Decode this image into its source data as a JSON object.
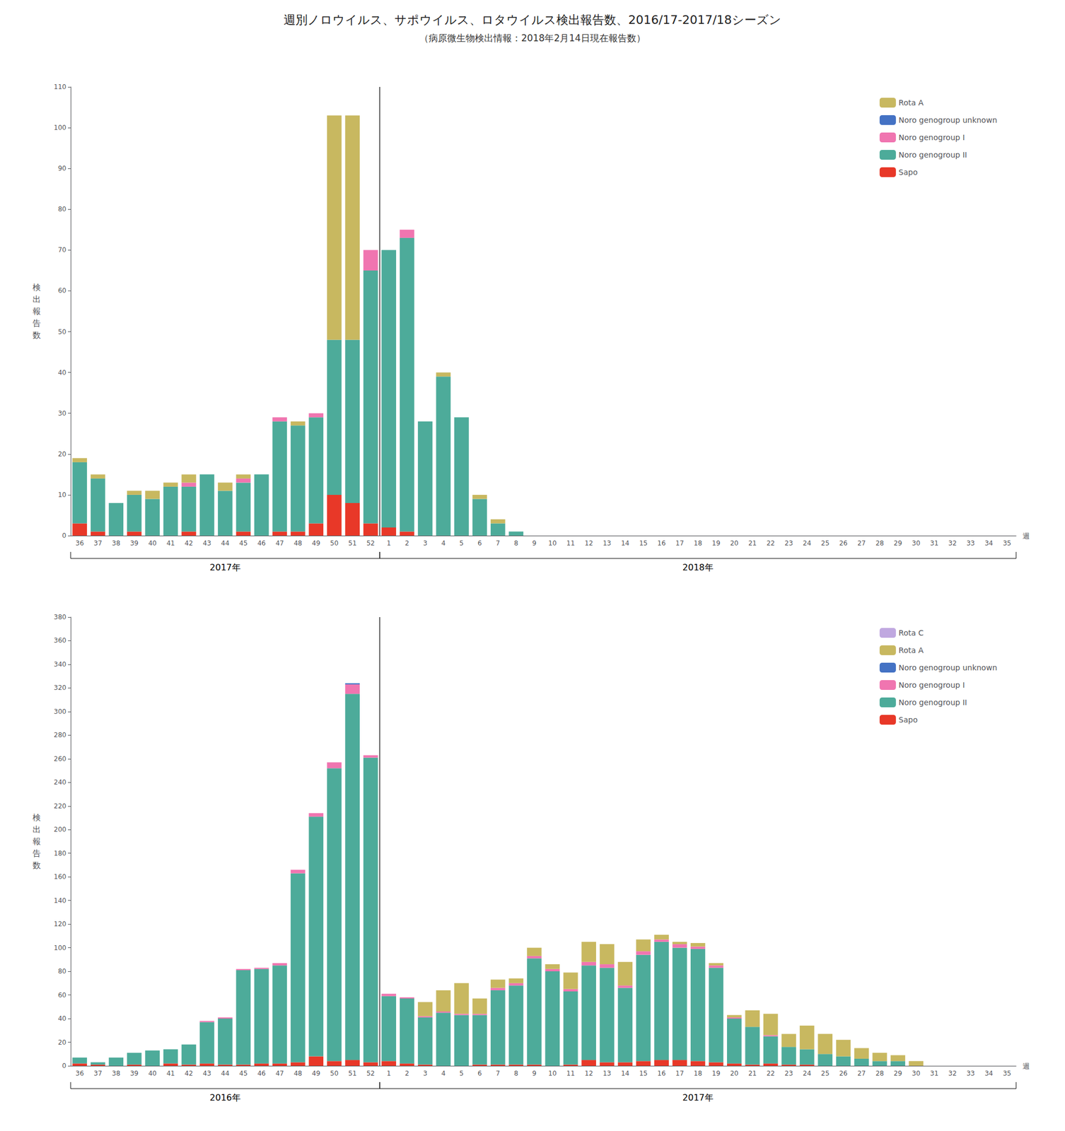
{
  "chart_data": [
    {
      "type": "bar",
      "stacked": true,
      "title": "週別ノロウイルス、サポウイルス、ロタウイルス検出報告数、2016/17-2017/18シーズン",
      "subtitle": "（病原微生物検出情報：2018年2月14日現在報告数）",
      "ylabel": "検\n出\n報\n告\n数",
      "xlabel": "週",
      "categories": [
        "36",
        "37",
        "38",
        "39",
        "40",
        "41",
        "42",
        "43",
        "44",
        "45",
        "46",
        "47",
        "48",
        "49",
        "50",
        "51",
        "52",
        "1",
        "2",
        "3",
        "4",
        "5",
        "6",
        "7",
        "8",
        "9",
        "10",
        "11",
        "12",
        "13",
        "14",
        "15",
        "16",
        "17",
        "18",
        "19",
        "20",
        "21",
        "22",
        "23",
        "24",
        "25",
        "26",
        "27",
        "28",
        "29",
        "30",
        "31",
        "32",
        "33",
        "34",
        "35"
      ],
      "series": [
        {
          "name": "Sapo",
          "color": "#e83828",
          "values": [
            3,
            1,
            0,
            1,
            0,
            0,
            1,
            0,
            0,
            1,
            0,
            1,
            1,
            3,
            10,
            8,
            3,
            2,
            1,
            0,
            0,
            0,
            0,
            0,
            0,
            0,
            0,
            0,
            0,
            0,
            0,
            0,
            0,
            0,
            0,
            0,
            0,
            0,
            0,
            0,
            0,
            0,
            0,
            0,
            0,
            0,
            0,
            0,
            0,
            0,
            0,
            0
          ]
        },
        {
          "name": "Noro genogroup II",
          "color": "#4dab9a",
          "values": [
            15,
            13,
            8,
            9,
            9,
            12,
            11,
            15,
            11,
            12,
            15,
            27,
            26,
            26,
            38,
            40,
            62,
            68,
            72,
            28,
            39,
            29,
            9,
            3,
            1,
            0,
            0,
            0,
            0,
            0,
            0,
            0,
            0,
            0,
            0,
            0,
            0,
            0,
            0,
            0,
            0,
            0,
            0,
            0,
            0,
            0,
            0,
            0,
            0,
            0,
            0,
            0
          ]
        },
        {
          "name": "Noro genogroup I",
          "color": "#f075b0",
          "values": [
            0,
            0,
            0,
            0,
            0,
            0,
            1,
            0,
            0,
            1,
            0,
            1,
            0,
            1,
            0,
            0,
            5,
            0,
            2,
            0,
            0,
            0,
            0,
            0,
            0,
            0,
            0,
            0,
            0,
            0,
            0,
            0,
            0,
            0,
            0,
            0,
            0,
            0,
            0,
            0,
            0,
            0,
            0,
            0,
            0,
            0,
            0,
            0,
            0,
            0,
            0,
            0
          ]
        },
        {
          "name": "Noro genogroup unknown",
          "color": "#4472c4",
          "values": [
            0,
            0,
            0,
            0,
            0,
            0,
            0,
            0,
            0,
            0,
            0,
            0,
            0,
            0,
            0,
            0,
            0,
            0,
            0,
            0,
            0,
            0,
            0,
            0,
            0,
            0,
            0,
            0,
            0,
            0,
            0,
            0,
            0,
            0,
            0,
            0,
            0,
            0,
            0,
            0,
            0,
            0,
            0,
            0,
            0,
            0,
            0,
            0,
            0,
            0,
            0,
            0
          ]
        },
        {
          "name": "Rota A",
          "color": "#c8b860",
          "values": [
            1,
            1,
            0,
            1,
            2,
            1,
            2,
            0,
            2,
            1,
            0,
            0,
            1,
            0,
            55,
            55,
            0,
            0,
            0,
            0,
            1,
            0,
            1,
            1,
            0,
            0,
            0,
            0,
            0,
            0,
            0,
            0,
            0,
            0,
            0,
            0,
            0,
            0,
            0,
            0,
            0,
            0,
            0,
            0,
            0,
            0,
            0,
            0,
            0,
            0,
            0,
            0
          ]
        }
      ],
      "ylim": [
        0,
        110
      ],
      "yticks": [
        0,
        10,
        20,
        30,
        40,
        50,
        60,
        70,
        80,
        90,
        100,
        110
      ],
      "annotations": [
        {
          "text": "2017年",
          "from": "36",
          "to": "52"
        },
        {
          "text": "2018年",
          "from": "1",
          "to": "35"
        }
      ],
      "legend": "upper right",
      "grid": false
    },
    {
      "type": "bar",
      "stacked": true,
      "ylabel": "検\n出\n報\n告\n数",
      "xlabel": "週",
      "categories": [
        "36",
        "37",
        "38",
        "39",
        "40",
        "41",
        "42",
        "43",
        "44",
        "45",
        "46",
        "47",
        "48",
        "49",
        "50",
        "51",
        "52",
        "1",
        "2",
        "3",
        "4",
        "5",
        "6",
        "7",
        "8",
        "9",
        "10",
        "11",
        "12",
        "13",
        "14",
        "15",
        "16",
        "17",
        "18",
        "19",
        "20",
        "21",
        "22",
        "23",
        "24",
        "25",
        "26",
        "27",
        "28",
        "29",
        "30",
        "31",
        "32",
        "33",
        "34",
        "35"
      ],
      "series": [
        {
          "name": "Sapo",
          "color": "#e83828",
          "values": [
            2,
            1,
            0,
            1,
            0,
            2,
            1,
            2,
            1,
            1,
            2,
            2,
            3,
            8,
            4,
            5,
            3,
            4,
            2,
            1,
            0,
            0,
            1,
            1,
            1,
            1,
            0,
            1,
            5,
            3,
            3,
            4,
            5,
            5,
            4,
            3,
            2,
            1,
            2,
            1,
            1,
            0,
            0,
            0,
            0,
            0,
            0,
            0,
            0,
            0,
            0,
            0
          ]
        },
        {
          "name": "Noro genogroup II",
          "color": "#4dab9a",
          "values": [
            5,
            2,
            7,
            10,
            13,
            12,
            17,
            35,
            39,
            80,
            80,
            83,
            160,
            203,
            248,
            310,
            258,
            55,
            55,
            40,
            45,
            43,
            42,
            63,
            67,
            90,
            80,
            62,
            80,
            80,
            63,
            90,
            100,
            95,
            95,
            80,
            38,
            32,
            23,
            15,
            13,
            10,
            8,
            6,
            4,
            4,
            0,
            0,
            0,
            0,
            0,
            0
          ]
        },
        {
          "name": "Noro genogroup I",
          "color": "#f075b0",
          "values": [
            0,
            0,
            0,
            0,
            0,
            0,
            0,
            1,
            1,
            1,
            1,
            2,
            3,
            3,
            5,
            8,
            2,
            2,
            1,
            1,
            1,
            1,
            1,
            2,
            2,
            2,
            2,
            2,
            3,
            3,
            2,
            3,
            2,
            3,
            2,
            2,
            1,
            0,
            1,
            0,
            0,
            0,
            0,
            0,
            0,
            0,
            0,
            0,
            0,
            0,
            0,
            0
          ]
        },
        {
          "name": "Noro genogroup unknown",
          "color": "#4472c4",
          "values": [
            0,
            0,
            0,
            0,
            0,
            0,
            0,
            0,
            0,
            0,
            0,
            0,
            0,
            0,
            0,
            1,
            0,
            0,
            0,
            0,
            0,
            0,
            0,
            0,
            0,
            0,
            0,
            0,
            0,
            0,
            0,
            0,
            0,
            0,
            0,
            0,
            0,
            0,
            0,
            0,
            0,
            0,
            0,
            0,
            0,
            0,
            0,
            0,
            0,
            0,
            0,
            0
          ]
        },
        {
          "name": "Rota A",
          "color": "#c8b860",
          "values": [
            0,
            0,
            0,
            0,
            0,
            0,
            0,
            0,
            0,
            0,
            0,
            0,
            0,
            0,
            0,
            0,
            0,
            0,
            0,
            12,
            18,
            26,
            13,
            7,
            4,
            7,
            4,
            14,
            17,
            17,
            20,
            10,
            4,
            2,
            3,
            2,
            2,
            14,
            18,
            11,
            20,
            17,
            14,
            9,
            7,
            5,
            4,
            0,
            0,
            0,
            0,
            0
          ]
        },
        {
          "name": "Rota C",
          "color": "#c0a8e0",
          "values": [
            0,
            0,
            0,
            0,
            0,
            0,
            0,
            0,
            0,
            0,
            0,
            0,
            0,
            0,
            0,
            0,
            0,
            0,
            0,
            0,
            0,
            0,
            0,
            0,
            0,
            0,
            0,
            0,
            0,
            0,
            0,
            0,
            0,
            0,
            0,
            0,
            0,
            0,
            0,
            0,
            0,
            0,
            0,
            0,
            0,
            0,
            0,
            0,
            0,
            0,
            0,
            0
          ]
        }
      ],
      "ylim": [
        0,
        380
      ],
      "yticks": [
        0,
        20,
        40,
        60,
        80,
        100,
        120,
        140,
        160,
        180,
        200,
        220,
        240,
        260,
        280,
        300,
        320,
        340,
        360,
        380
      ],
      "annotations": [
        {
          "text": "2016年",
          "from": "36",
          "to": "52"
        },
        {
          "text": "2017年",
          "from": "1",
          "to": "35"
        }
      ],
      "legend": "upper right",
      "grid": false
    }
  ]
}
